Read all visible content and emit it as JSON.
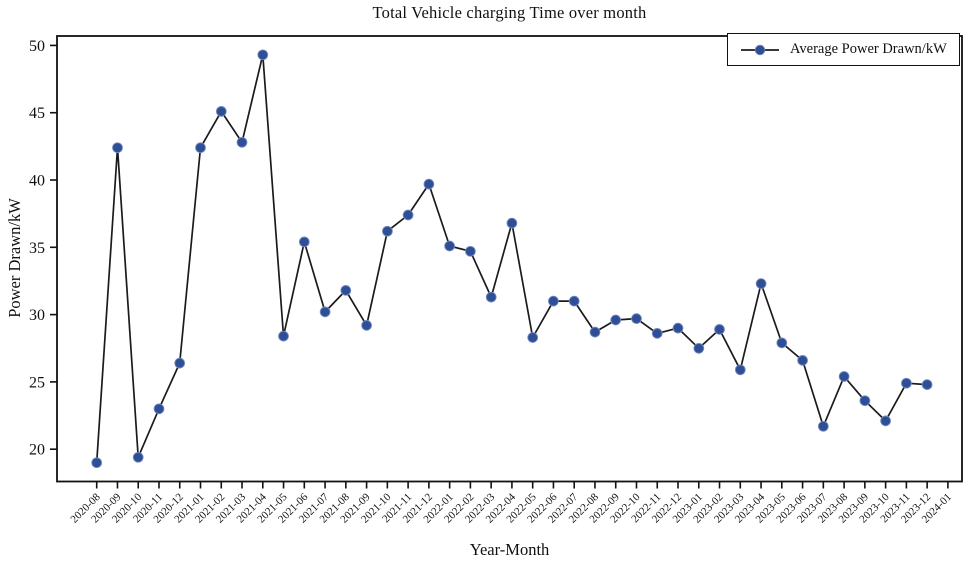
{
  "chart_data": {
    "type": "line",
    "title": "Total Vehicle charging Time over month",
    "xlabel": "Year-Month",
    "ylabel": "Power Drawn/kW",
    "legend": {
      "label": "Average Power Drawn/kW",
      "position": "upper-right"
    },
    "categories": [
      "2020-08",
      "2020-09",
      "2020-10",
      "2020-11",
      "2020-12",
      "2021-01",
      "2021-02",
      "2021-03",
      "2021-04",
      "2021-05",
      "2021-06",
      "2021-07",
      "2021-08",
      "2021-09",
      "2021-10",
      "2021-11",
      "2021-12",
      "2022-01",
      "2022-02",
      "2022-03",
      "2022-04",
      "2022-05",
      "2022-06",
      "2022-07",
      "2022-08",
      "2022-09",
      "2022-10",
      "2022-11",
      "2022-12",
      "2023-01",
      "2023-02",
      "2023-03",
      "2023-04",
      "2023-05",
      "2023-06",
      "2023-07",
      "2023-08",
      "2023-09",
      "2023-10",
      "2023-11",
      "2023-12",
      "2024-01"
    ],
    "series": [
      {
        "name": "Average Power Drawn/kW",
        "values": [
          19.0,
          42.4,
          19.4,
          23.0,
          26.4,
          42.4,
          45.1,
          42.8,
          49.3,
          28.4,
          35.4,
          30.2,
          31.8,
          29.2,
          36.2,
          37.4,
          39.7,
          35.1,
          34.7,
          31.3,
          36.8,
          28.3,
          31.0,
          31.0,
          28.7,
          29.6,
          29.7,
          28.6,
          29.0,
          27.5,
          28.9,
          25.9,
          32.3,
          27.9,
          26.6,
          21.7,
          25.4,
          23.6,
          22.1,
          24.9,
          24.8,
          null
        ]
      }
    ],
    "yticks": [
      20,
      25,
      30,
      35,
      40,
      45,
      50
    ],
    "ylim": [
      17.6,
      50.7
    ],
    "grid": false,
    "colors": {
      "line": "#1b1b1b",
      "marker": "#2e4e96",
      "marker_edge": "#7389c0",
      "axis": "#111111"
    }
  }
}
